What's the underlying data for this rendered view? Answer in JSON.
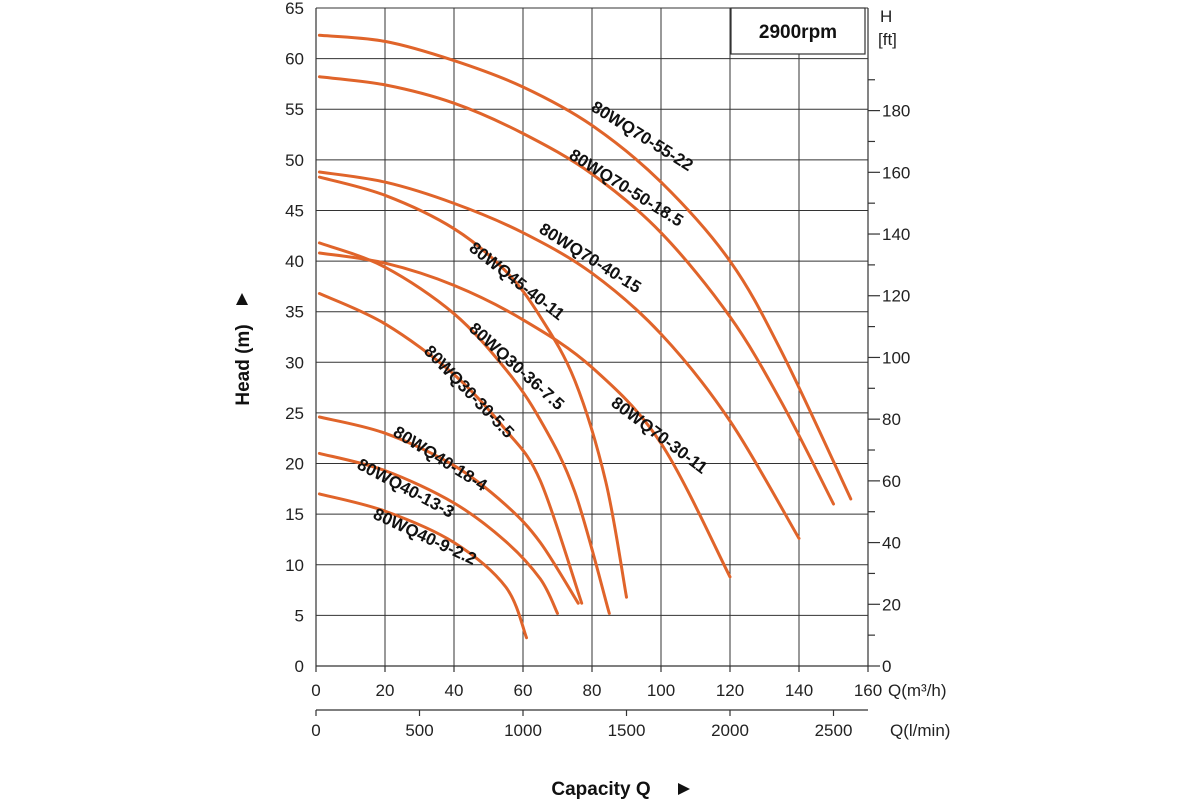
{
  "chart_data": {
    "type": "line",
    "title": "",
    "annotation": "2900rpm",
    "xlabel": "Capacity Q",
    "ylabel": "Head (m)",
    "x_units_primary": "Q(m³/h)",
    "x_units_secondary": "Q(l/min)",
    "y_units_secondary_line1": "H",
    "y_units_secondary_line2": "[ft]",
    "xlim": [
      0,
      160
    ],
    "ylim": [
      0,
      65
    ],
    "grid": true,
    "legend": "none",
    "curve_color": "#e0642a",
    "x_ticks": [
      "0",
      "20",
      "40",
      "60",
      "80",
      "100",
      "120",
      "140",
      "160"
    ],
    "x_secondary_ticks": [
      "0",
      "500",
      "1000",
      "1500",
      "2000",
      "2500"
    ],
    "y_ticks": [
      "0",
      "5",
      "10",
      "15",
      "20",
      "25",
      "30",
      "35",
      "40",
      "45",
      "50",
      "55",
      "60",
      "65"
    ],
    "y_secondary_ticks": [
      "0",
      "20",
      "40",
      "60",
      "80",
      "100",
      "120",
      "140",
      "160",
      "180"
    ],
    "series": [
      {
        "name": "80WQ70-55-22",
        "points": [
          [
            1,
            62.3
          ],
          [
            20,
            61.7
          ],
          [
            40,
            59.8
          ],
          [
            60,
            57.2
          ],
          [
            80,
            53.4
          ],
          [
            100,
            47.8
          ],
          [
            120,
            40.0
          ],
          [
            135,
            31.0
          ],
          [
            155,
            16.5
          ]
        ]
      },
      {
        "name": "80WQ70-50-18.5",
        "points": [
          [
            1,
            58.2
          ],
          [
            20,
            57.4
          ],
          [
            40,
            55.6
          ],
          [
            60,
            52.6
          ],
          [
            80,
            48.6
          ],
          [
            100,
            42.8
          ],
          [
            120,
            34.5
          ],
          [
            135,
            26.0
          ],
          [
            150,
            16.0
          ]
        ]
      },
      {
        "name": "80WQ70-40-15",
        "points": [
          [
            1,
            48.8
          ],
          [
            20,
            47.8
          ],
          [
            40,
            45.7
          ],
          [
            60,
            42.8
          ],
          [
            80,
            38.8
          ],
          [
            100,
            32.8
          ],
          [
            120,
            24.2
          ],
          [
            140,
            12.6
          ]
        ]
      },
      {
        "name": "80WQ70-30-11",
        "points": [
          [
            1,
            40.8
          ],
          [
            20,
            39.8
          ],
          [
            40,
            37.6
          ],
          [
            60,
            34.2
          ],
          [
            80,
            29.5
          ],
          [
            100,
            22.0
          ],
          [
            120,
            8.8
          ]
        ]
      },
      {
        "name": "80WQ45-40-11",
        "points": [
          [
            1,
            48.3
          ],
          [
            20,
            46.5
          ],
          [
            40,
            43.2
          ],
          [
            55,
            39.0
          ],
          [
            65,
            34.5
          ],
          [
            75,
            28.2
          ],
          [
            84,
            18.2
          ],
          [
            90,
            6.8
          ]
        ]
      },
      {
        "name": "80WQ30-36-7.5",
        "points": [
          [
            1,
            41.8
          ],
          [
            20,
            39.4
          ],
          [
            40,
            34.8
          ],
          [
            55,
            29.3
          ],
          [
            65,
            24.3
          ],
          [
            75,
            17.2
          ],
          [
            85,
            5.2
          ]
        ]
      },
      {
        "name": "80WQ30-30-5.5",
        "points": [
          [
            1,
            36.8
          ],
          [
            20,
            33.8
          ],
          [
            40,
            28.8
          ],
          [
            55,
            23.3
          ],
          [
            65,
            18.3
          ],
          [
            77,
            6.2
          ]
        ]
      },
      {
        "name": "80WQ40-18-4",
        "points": [
          [
            1,
            24.6
          ],
          [
            20,
            23.0
          ],
          [
            40,
            19.8
          ],
          [
            55,
            15.9
          ],
          [
            65,
            12.2
          ],
          [
            76,
            6.2
          ]
        ]
      },
      {
        "name": "80WQ40-13-3",
        "points": [
          [
            1,
            21.0
          ],
          [
            20,
            19.3
          ],
          [
            40,
            16.1
          ],
          [
            55,
            12.3
          ],
          [
            65,
            8.6
          ],
          [
            70,
            5.2
          ]
        ]
      },
      {
        "name": "80WQ40-9-2.2",
        "points": [
          [
            1,
            17.0
          ],
          [
            20,
            15.3
          ],
          [
            40,
            12.2
          ],
          [
            55,
            7.8
          ],
          [
            61,
            2.8
          ]
        ]
      }
    ]
  }
}
